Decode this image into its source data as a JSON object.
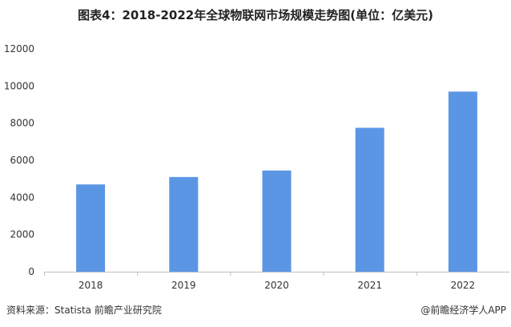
{
  "title": "图表4：2018-2022年全球物联网市场规模走势图(单位：亿美元)",
  "source": "资料来源：Statista 前瞻产业研究院",
  "credit": "@前瞻经济学人APP",
  "bar_color": "#5b96e5",
  "chart_data": {
    "type": "bar",
    "categories": [
      "2018",
      "2019",
      "2020",
      "2021",
      "2022"
    ],
    "values": [
      4700,
      5100,
      5450,
      7750,
      9700
    ],
    "title": "图表4：2018-2022年全球物联网市场规模走势图(单位：亿美元)",
    "xlabel": "",
    "ylabel": "",
    "ylim": [
      0,
      12000
    ],
    "yticks": [
      "0",
      "2000",
      "4000",
      "6000",
      "8000",
      "10000",
      "12000"
    ],
    "grid": false
  }
}
